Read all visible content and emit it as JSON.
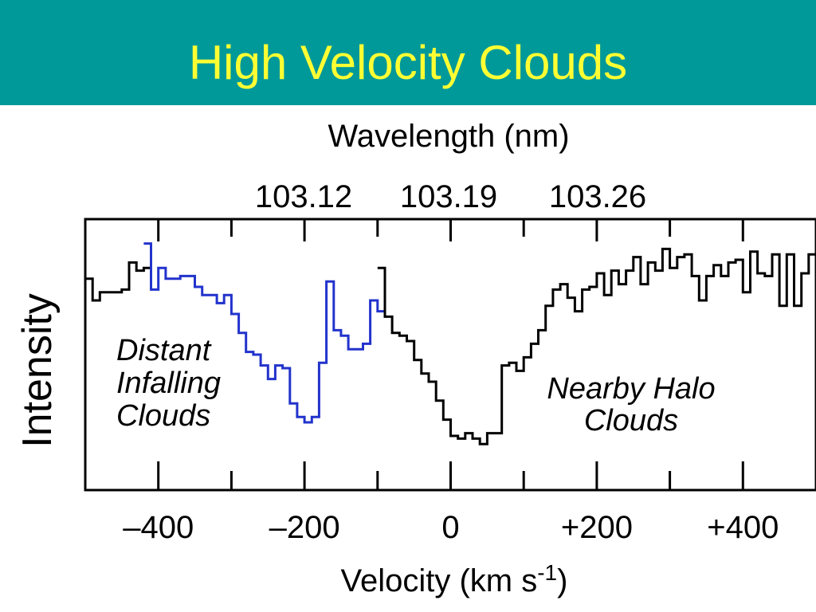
{
  "slide": {
    "title": "High Velocity Clouds",
    "header_color": "#009999",
    "title_color": "#ffff33"
  },
  "chart_data": {
    "type": "line",
    "xlabel": "Velocity (km s",
    "xlabel_superscript": "-1",
    "xlabel_suffix": ")",
    "ylabel": "Intensity",
    "top_axis_label": "Wavelength (nm)",
    "top_axis_ticks": [
      "103.12",
      "103.19",
      "103.26"
    ],
    "xlim": [
      -500,
      500
    ],
    "ylim": [
      0,
      1
    ],
    "x_ticks": [
      -400,
      -200,
      0,
      200,
      400
    ],
    "x_tick_labels": [
      "–400",
      "–200",
      "0",
      "+200",
      "+400"
    ],
    "annotations": [
      {
        "lines": [
          "Distant",
          "Infalling",
          "Clouds"
        ],
        "color": "#000000"
      },
      {
        "lines": [
          "Nearby Halo",
          "Clouds"
        ],
        "color": "#000000"
      }
    ],
    "series": [
      {
        "color": "#000000",
        "x": [
          -500,
          -490,
          -480,
          -470,
          -460,
          -450,
          -440,
          -430,
          -420
        ],
        "y": [
          0.78,
          0.7,
          0.73,
          0.73,
          0.73,
          0.74,
          0.84,
          0.81,
          0.82
        ]
      },
      {
        "color": "#2233cc",
        "x": [
          -420,
          -410,
          -400,
          -390,
          -380,
          -370,
          -360,
          -350,
          -340,
          -330,
          -320,
          -310,
          -300,
          -290,
          -280,
          -270,
          -260,
          -250,
          -240,
          -230,
          -220,
          -210,
          -200,
          -190,
          -180,
          -170,
          -160,
          -150,
          -140,
          -130,
          -120,
          -110,
          -100
        ],
        "y": [
          0.91,
          0.74,
          0.82,
          0.78,
          0.78,
          0.79,
          0.79,
          0.75,
          0.72,
          0.72,
          0.69,
          0.72,
          0.65,
          0.58,
          0.51,
          0.5,
          0.46,
          0.41,
          0.46,
          0.45,
          0.32,
          0.27,
          0.25,
          0.27,
          0.47,
          0.77,
          0.59,
          0.57,
          0.52,
          0.52,
          0.54,
          0.7,
          0.66
        ]
      },
      {
        "color": "#000000",
        "x": [
          -100,
          -90,
          -80,
          -70,
          -60,
          -50,
          -40,
          -30,
          -20,
          -10,
          0,
          10,
          20,
          30,
          40,
          50,
          60,
          70,
          80,
          90,
          100,
          110,
          120,
          130,
          140,
          150,
          160,
          170,
          180,
          190,
          200,
          210,
          220,
          230,
          240,
          250,
          260,
          270,
          280,
          290,
          300,
          310,
          320,
          330,
          340,
          350,
          360,
          370,
          380,
          390,
          400,
          410,
          420,
          430,
          440,
          450,
          460,
          470,
          480,
          490
        ],
        "y": [
          0.82,
          0.64,
          0.58,
          0.57,
          0.55,
          0.48,
          0.43,
          0.4,
          0.33,
          0.26,
          0.2,
          0.19,
          0.21,
          0.19,
          0.17,
          0.21,
          0.21,
          0.46,
          0.47,
          0.44,
          0.49,
          0.54,
          0.59,
          0.68,
          0.74,
          0.76,
          0.71,
          0.66,
          0.74,
          0.75,
          0.8,
          0.72,
          0.81,
          0.76,
          0.81,
          0.86,
          0.76,
          0.84,
          0.81,
          0.89,
          0.82,
          0.86,
          0.87,
          0.79,
          0.7,
          0.79,
          0.83,
          0.79,
          0.84,
          0.85,
          0.73,
          0.88,
          0.8,
          0.79,
          0.87,
          0.68,
          0.87,
          0.68,
          0.8,
          0.87
        ]
      }
    ]
  }
}
